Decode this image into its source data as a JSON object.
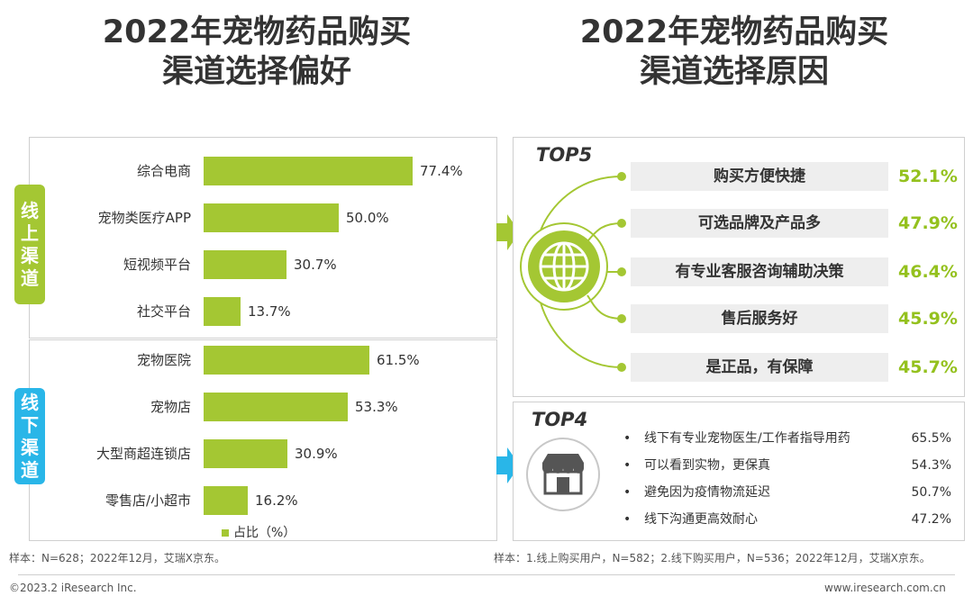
{
  "left_title": {
    "line1": "2022年宠物药品购买",
    "line2": "渠道选择偏好"
  },
  "right_title": {
    "line1": "2022年宠物药品购买",
    "line2": "渠道选择原因"
  },
  "chart_data": {
    "type": "bar",
    "orientation": "horizontal",
    "title": "2022年宠物药品购买渠道选择偏好",
    "groups": [
      {
        "name": "线上渠道",
        "categories": [
          "综合电商",
          "宠物类医疗APP",
          "短视频平台",
          "社交平台"
        ],
        "values": [
          77.4,
          50.0,
          30.7,
          13.7
        ]
      },
      {
        "name": "线下渠道",
        "categories": [
          "宠物医院",
          "宠物店",
          "大型商超连锁店",
          "零售店/小超市"
        ],
        "values": [
          61.5,
          53.3,
          30.9,
          16.2
        ]
      }
    ],
    "value_labels": [
      "77.4%",
      "50.0%",
      "30.7%",
      "13.7%",
      "61.5%",
      "53.3%",
      "30.9%",
      "16.2%"
    ],
    "legend": "占比（%）",
    "color": "#a4c733",
    "xlim": [
      0,
      100
    ]
  },
  "online_tag": [
    "线",
    "上",
    "渠",
    "道"
  ],
  "offline_tag": [
    "线",
    "下",
    "渠",
    "道"
  ],
  "top5": {
    "label": "TOP5",
    "items": [
      {
        "reason": "购买方便快捷",
        "value": "52.1%"
      },
      {
        "reason": "可选品牌及产品多",
        "value": "47.9%"
      },
      {
        "reason": "有专业客服咨询辅助决策",
        "value": "46.4%"
      },
      {
        "reason": "售后服务好",
        "value": "45.9%"
      },
      {
        "reason": "是正品，有保障",
        "value": "45.7%"
      }
    ]
  },
  "top4": {
    "label": "TOP4",
    "items": [
      {
        "reason": "线下有专业宠物医生/工作者指导用药",
        "value": "65.5%"
      },
      {
        "reason": "可以看到实物，更保真",
        "value": "54.3%"
      },
      {
        "reason": "避免因为疫情物流延迟",
        "value": "50.7%"
      },
      {
        "reason": "线下沟通更高效耐心",
        "value": "47.2%"
      }
    ],
    "bullet": "•"
  },
  "notes": {
    "left": "样本：N=628；2022年12月，艾瑞X京东。",
    "right": "样本：1.线上购买用户，N=582；2.线下购买用户，N=536；2022年12月，艾瑞X京东。"
  },
  "footer": {
    "copyright": "©2023.2 iResearch Inc.",
    "site": "www.iresearch.com.cn"
  },
  "colors": {
    "green": "#a4c733",
    "value_green": "#94c11e",
    "cyan": "#29b6e8"
  }
}
